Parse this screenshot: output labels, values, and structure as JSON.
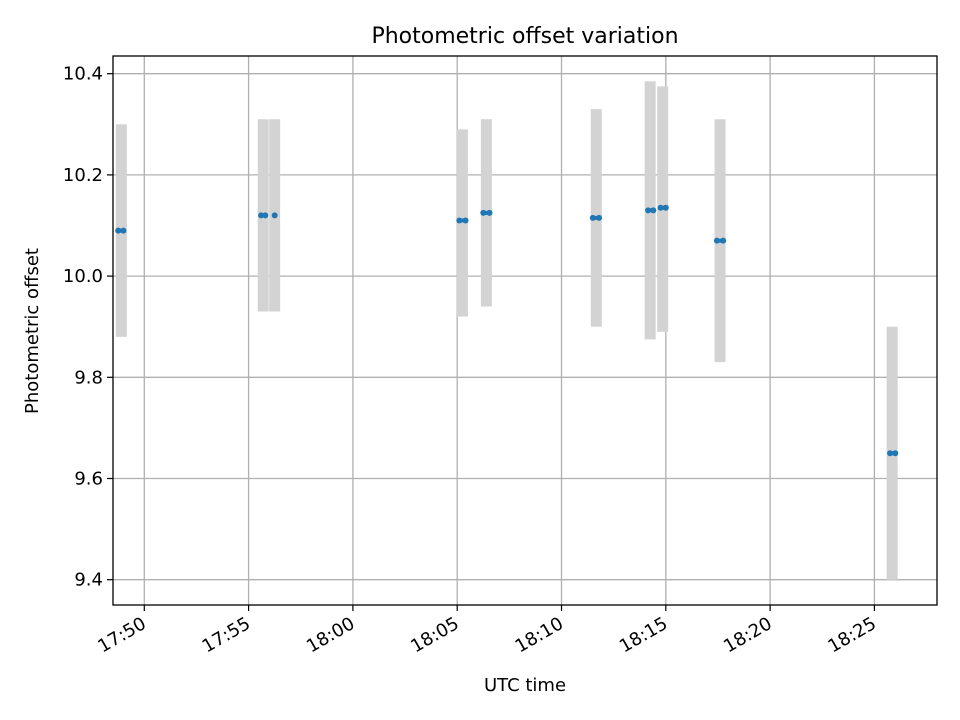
{
  "chart_data": {
    "type": "scatter",
    "title": "Photometric offset variation",
    "xlabel": "UTC time",
    "ylabel": "Photometric offset",
    "xlim": [
      "17:48:30",
      "18:28:00"
    ],
    "ylim": [
      9.35,
      10.435
    ],
    "x_ticks": [
      "17:50",
      "17:55",
      "18:00",
      "18:05",
      "18:10",
      "18:15",
      "18:20",
      "18:25"
    ],
    "y_ticks": [
      "9.4",
      "9.6",
      "9.8",
      "10.0",
      "10.2",
      "10.4"
    ],
    "grid": true,
    "colors": {
      "point": "#1f77b4",
      "error_bar": "#d3d3d3",
      "grid": "#b0b0b0"
    },
    "groups": [
      {
        "bar_x": "17:48:54",
        "y_low": 9.88,
        "y_high": 10.3,
        "points": [
          {
            "x": "17:48:45",
            "y": 10.09
          },
          {
            "x": "17:49:00",
            "y": 10.09
          }
        ]
      },
      {
        "bar_x": "17:55:42",
        "y_low": 9.93,
        "y_high": 10.31,
        "points": [
          {
            "x": "17:55:36",
            "y": 10.12
          },
          {
            "x": "17:55:48",
            "y": 10.12
          }
        ]
      },
      {
        "bar_x": "17:56:15",
        "y_low": 9.93,
        "y_high": 10.31,
        "points": [
          {
            "x": "17:56:15",
            "y": 10.12
          }
        ]
      },
      {
        "bar_x": "18:05:15",
        "y_low": 9.92,
        "y_high": 10.29,
        "points": [
          {
            "x": "18:05:06",
            "y": 10.11
          },
          {
            "x": "18:05:24",
            "y": 10.11
          }
        ]
      },
      {
        "bar_x": "18:06:24",
        "y_low": 9.94,
        "y_high": 10.31,
        "points": [
          {
            "x": "18:06:15",
            "y": 10.125
          },
          {
            "x": "18:06:33",
            "y": 10.125
          }
        ]
      },
      {
        "bar_x": "18:11:40",
        "y_low": 9.9,
        "y_high": 10.33,
        "points": [
          {
            "x": "18:11:30",
            "y": 10.115
          },
          {
            "x": "18:11:48",
            "y": 10.115
          }
        ]
      },
      {
        "bar_x": "18:14:15",
        "y_low": 9.875,
        "y_high": 10.385,
        "points": [
          {
            "x": "18:14:09",
            "y": 10.13
          },
          {
            "x": "18:14:24",
            "y": 10.13
          }
        ]
      },
      {
        "bar_x": "18:14:51",
        "y_low": 9.89,
        "y_high": 10.375,
        "points": [
          {
            "x": "18:14:45",
            "y": 10.135
          },
          {
            "x": "18:15:00",
            "y": 10.135
          }
        ]
      },
      {
        "bar_x": "18:17:36",
        "y_low": 9.83,
        "y_high": 10.31,
        "points": [
          {
            "x": "18:17:27",
            "y": 10.07
          },
          {
            "x": "18:17:45",
            "y": 10.07
          }
        ]
      },
      {
        "bar_x": "18:25:51",
        "y_low": 9.4,
        "y_high": 9.9,
        "points": [
          {
            "x": "18:25:45",
            "y": 9.65
          },
          {
            "x": "18:26:00",
            "y": 9.65
          }
        ]
      }
    ]
  }
}
